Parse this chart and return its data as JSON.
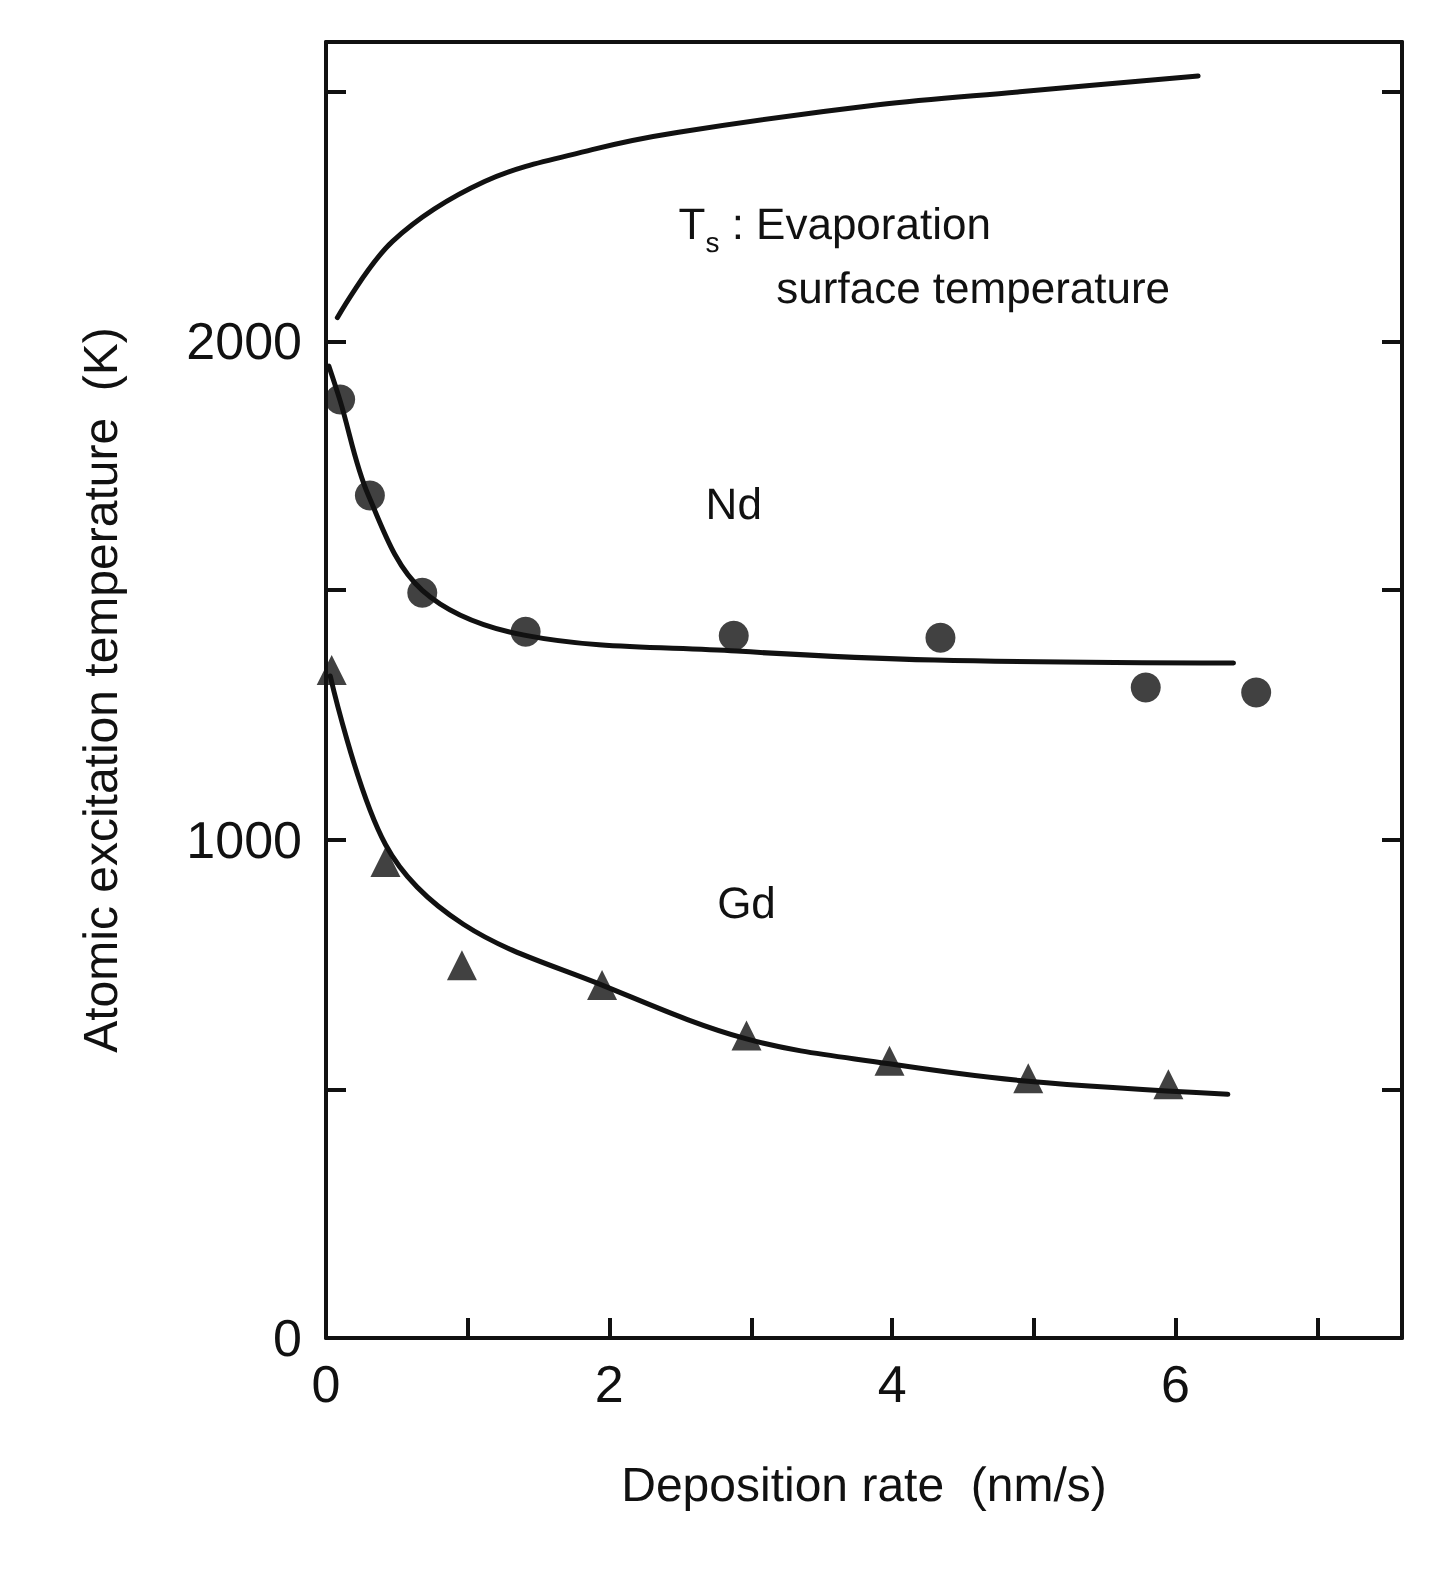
{
  "chart_data": {
    "type": "scatter",
    "xlabel": "Deposition rate  (nm/s)",
    "ylabel": "Atomic excitation temperature  (K)",
    "xlim": [
      0,
      7.6
    ],
    "xticks": [
      0,
      {
        "value": 1,
        "label": null
      },
      2,
      {
        "value": 3,
        "label": null
      },
      4,
      {
        "value": 5,
        "label": null
      },
      6,
      {
        "value": 7,
        "label": null
      }
    ],
    "ylim": [
      0,
      2600
    ],
    "yticks": [
      0,
      {
        "value": 500,
        "label": null
      },
      1000,
      {
        "value": 1500,
        "label": null
      },
      2000,
      {
        "value": 2500,
        "label": null
      }
    ],
    "grid": false,
    "series": [
      {
        "type": "line",
        "name": "T$_{s}$ : Evaporation\n        surface temperature",
        "color": "#111111",
        "marker": "none",
        "line_style": "solid",
        "x": [
          0.08,
          0.47,
          1.12,
          1.88,
          2.49,
          3.9,
          4.9,
          6.16
        ],
        "values": [
          2047,
          2200,
          2320,
          2384,
          2419,
          2474,
          2500,
          2532
        ]
      },
      {
        "type": "line",
        "color": "#111111",
        "marker": "none",
        "line_style": "solid",
        "x": [
          0.02,
          0.1,
          0.3,
          0.68,
          1.4,
          2.9,
          4.3,
          6.41
        ],
        "values": [
          1950,
          1880,
          1690,
          1500,
          1410,
          1378,
          1360,
          1354
        ]
      },
      {
        "name": "Nd",
        "color": "#111111",
        "marker": "circle",
        "x": [
          0.1,
          0.31,
          0.68,
          1.41,
          2.88,
          4.34,
          5.79,
          6.57
        ],
        "values": [
          1883,
          1690,
          1495,
          1417,
          1409,
          1405,
          1305,
          1295
        ]
      },
      {
        "type": "line",
        "color": "#111111",
        "marker": "none",
        "line_style": "solid",
        "x": [
          0.03,
          0.42,
          0.97,
          1.95,
          2.97,
          3.98,
          4.96,
          6.37
        ],
        "values": [
          1328,
          990,
          830,
          708,
          600,
          550,
          515,
          489
        ]
      },
      {
        "name": "Gd",
        "color": "#111111",
        "marker": "triangle",
        "x": [
          0.04,
          0.42,
          0.96,
          1.95,
          2.97,
          3.98,
          4.96,
          5.95
        ],
        "values": [
          1340,
          955,
          748,
          708,
          607,
          556,
          521,
          509
        ]
      }
    ]
  }
}
